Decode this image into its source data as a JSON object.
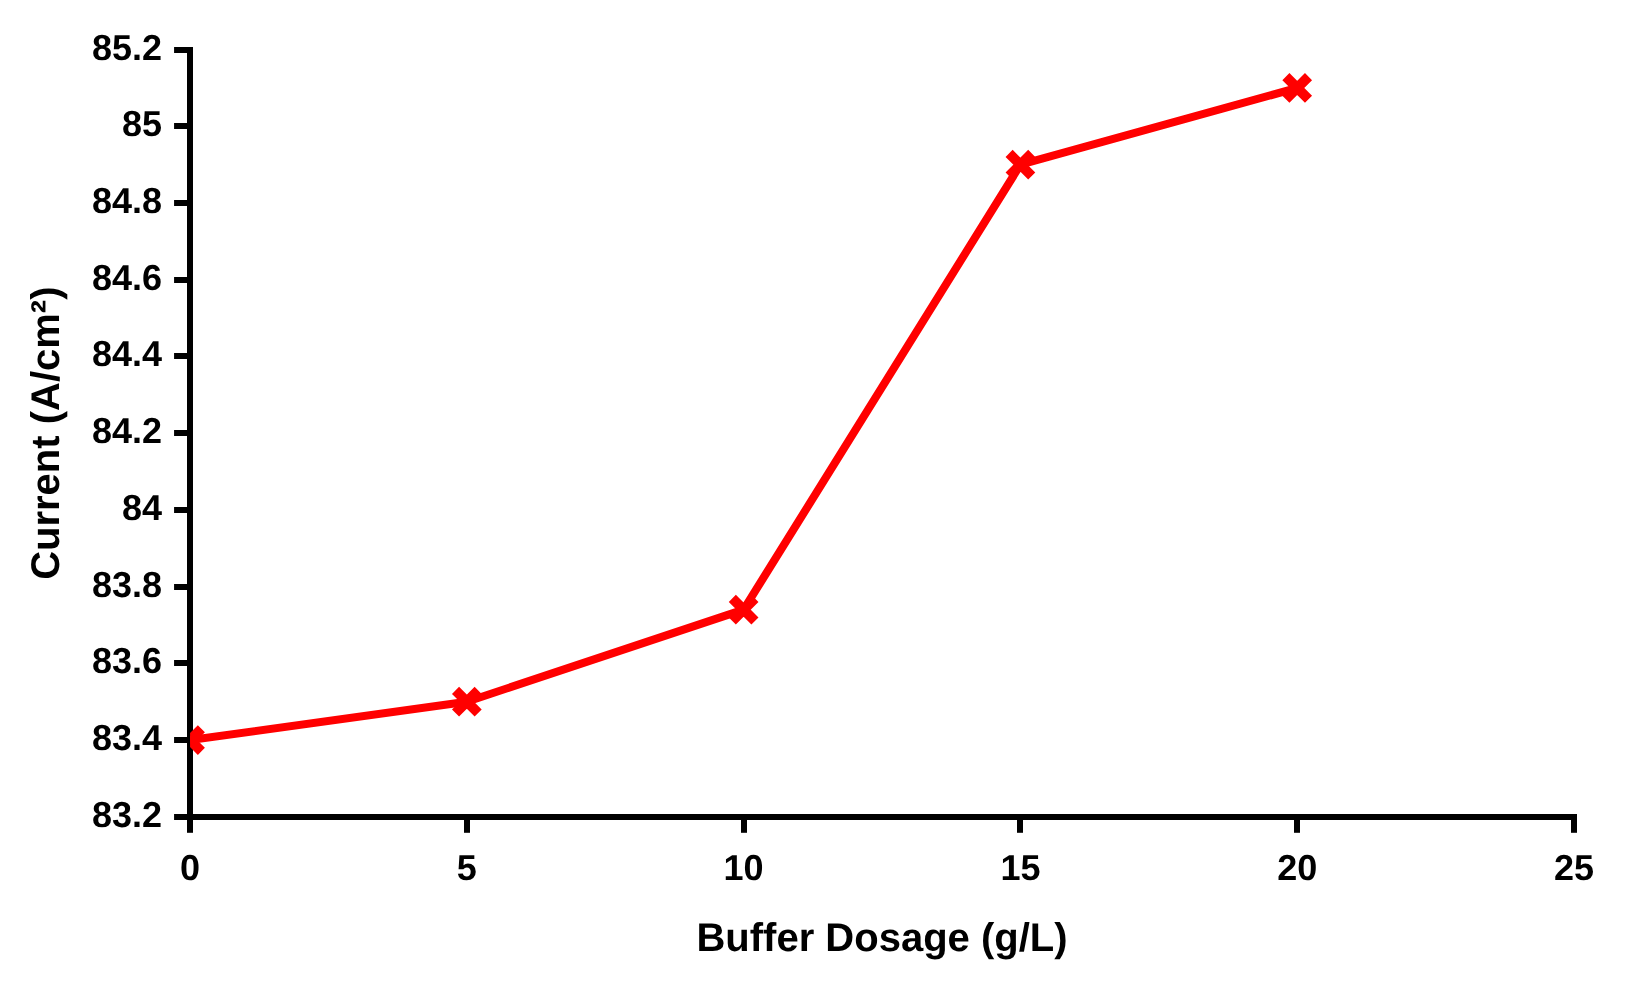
{
  "chart_data": {
    "type": "line",
    "xlabel": "Buffer Dosage (g/L)",
    "ylabel": "Current (A/cm²)",
    "x": [
      0,
      5,
      10,
      15,
      20
    ],
    "series": [
      {
        "color": "#ff0000",
        "values": [
          83.4,
          83.5,
          83.74,
          84.9,
          85.1
        ]
      }
    ],
    "xlim": [
      0,
      25
    ],
    "xticks": [
      0,
      5,
      10,
      15,
      20,
      25
    ],
    "ylim": [
      83.2,
      85.2
    ],
    "yticks": [
      83.2,
      83.4,
      83.6,
      83.8,
      84,
      84.2,
      84.4,
      84.6,
      84.8,
      85,
      85.2
    ],
    "grid": false,
    "legend": false,
    "marker": "cross",
    "line_style": "solid"
  }
}
